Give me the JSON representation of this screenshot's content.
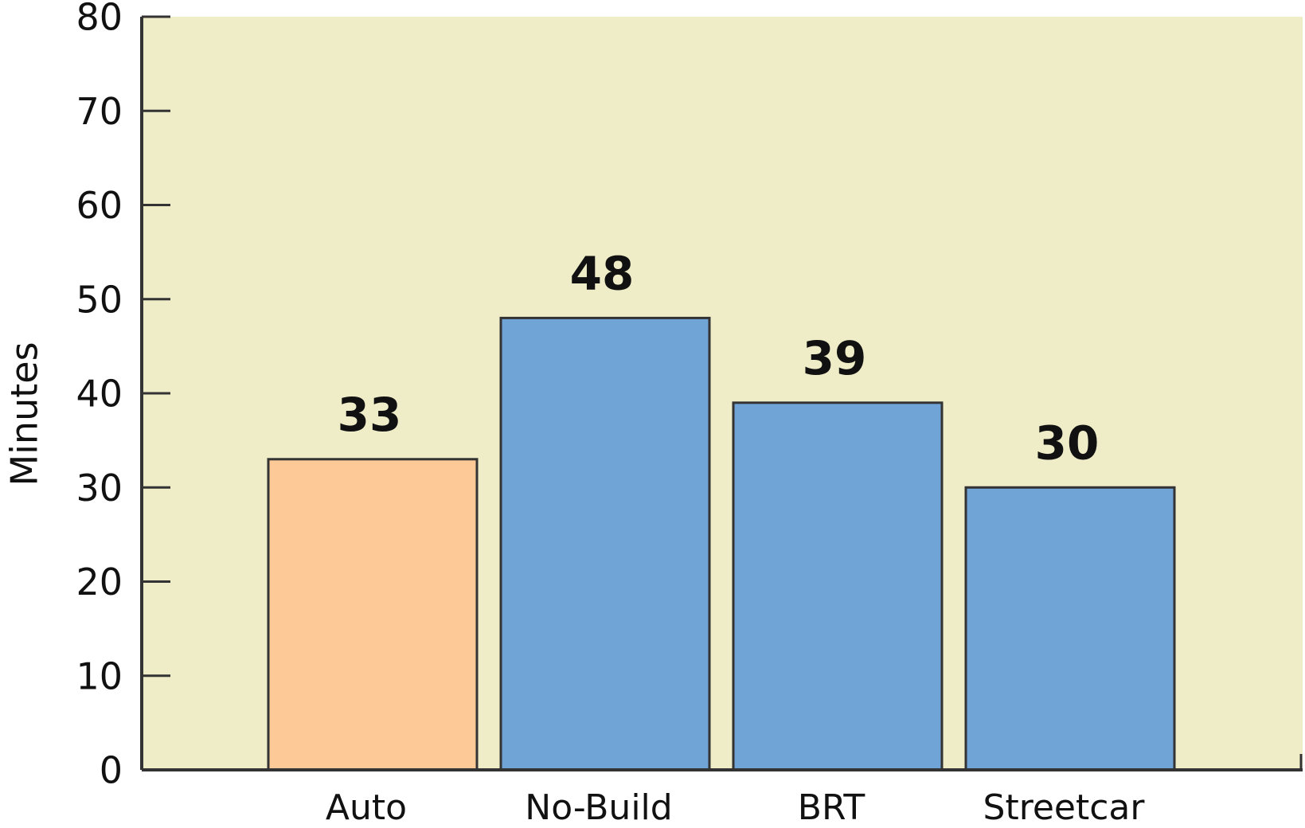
{
  "chart_data": {
    "type": "bar",
    "y_label": "Minutes",
    "categories": [
      "Auto",
      "No-Build",
      "BRT",
      "Streetcar"
    ],
    "values": [
      33,
      48,
      39,
      30
    ],
    "colors": [
      "#fcc997",
      "#70a3d6",
      "#70a3d6",
      "#70a3d6"
    ],
    "plot_background": "#efedc8",
    "ylim": [
      0,
      80
    ],
    "yticks": [
      0,
      10,
      20,
      30,
      40,
      50,
      60,
      70,
      80
    ]
  }
}
